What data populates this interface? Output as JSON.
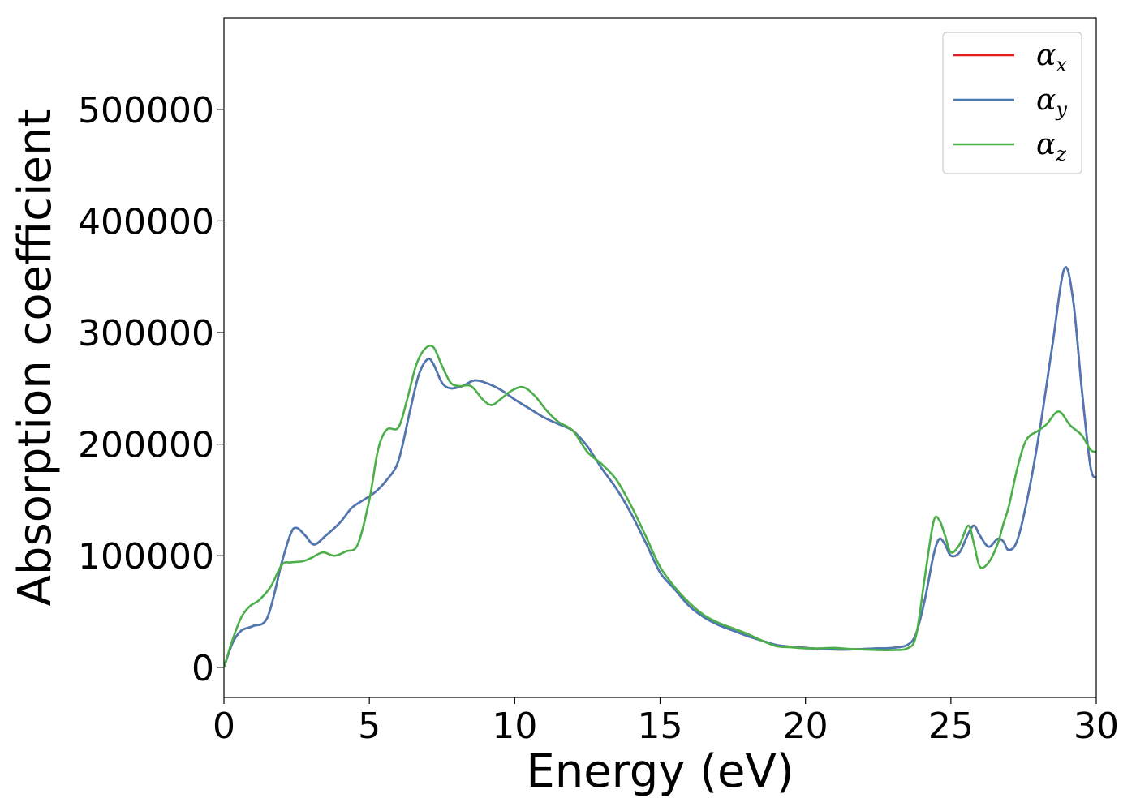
{
  "chart_data": {
    "type": "line",
    "title": "",
    "xlabel": "Energy (eV)",
    "ylabel": "Absorption coefficient",
    "xlim": [
      0,
      30
    ],
    "ylim": [
      -27000,
      582000
    ],
    "xticks": [
      0,
      5,
      10,
      15,
      20,
      25,
      30
    ],
    "yticks": [
      0,
      100000,
      200000,
      300000,
      400000,
      500000
    ],
    "grid": false,
    "legend_position": "top-right",
    "series": [
      {
        "name": "αx",
        "symbol": "α",
        "subscript": "x",
        "color": "#e41a1c",
        "x": [
          0,
          0.3,
          0.6,
          1.0,
          1.5,
          2.0,
          2.3,
          2.5,
          2.8,
          3.1,
          3.5,
          4.0,
          4.4,
          4.8,
          5.2,
          5.6,
          6.0,
          6.4,
          6.7,
          7.0,
          7.2,
          7.5,
          7.8,
          8.2,
          8.6,
          9.0,
          9.5,
          10.0,
          10.5,
          11.0,
          11.5,
          12.0,
          12.5,
          13.0,
          13.5,
          14.0,
          14.5,
          15.0,
          15.5,
          16.0,
          16.5,
          17.0,
          17.5,
          18.0,
          18.5,
          19.0,
          19.5,
          20.0,
          20.5,
          21.0,
          21.5,
          22.0,
          22.5,
          23.0,
          23.5,
          23.8,
          24.1,
          24.4,
          24.6,
          24.8,
          25.0,
          25.3,
          25.6,
          25.8,
          26.0,
          26.3,
          26.6,
          26.8,
          27.0,
          27.3,
          27.7,
          28.1,
          28.5,
          28.9,
          29.2,
          29.5,
          29.8,
          30.0
        ],
        "y": [
          0,
          22000,
          33000,
          37000,
          45000,
          95000,
          120000,
          125000,
          118000,
          110000,
          118000,
          130000,
          143000,
          150000,
          157000,
          168000,
          185000,
          230000,
          262000,
          276000,
          272000,
          255000,
          250000,
          252000,
          257000,
          255000,
          249000,
          240000,
          232000,
          224000,
          218000,
          212000,
          198000,
          178000,
          160000,
          138000,
          112000,
          85000,
          70000,
          55000,
          45000,
          38000,
          33000,
          28000,
          24000,
          20000,
          18500,
          17500,
          16500,
          16000,
          16000,
          16500,
          17000,
          17500,
          20000,
          30000,
          60000,
          100000,
          115000,
          110000,
          100000,
          103000,
          120000,
          127000,
          118000,
          108000,
          115000,
          113000,
          105000,
          115000,
          160000,
          220000,
          290000,
          357000,
          330000,
          250000,
          180000,
          170000
        ]
      },
      {
        "name": "αy",
        "symbol": "α",
        "subscript": "y",
        "color": "#4a7ab5",
        "x": [
          0,
          0.3,
          0.6,
          1.0,
          1.5,
          2.0,
          2.3,
          2.5,
          2.8,
          3.1,
          3.5,
          4.0,
          4.4,
          4.8,
          5.2,
          5.6,
          6.0,
          6.4,
          6.7,
          7.0,
          7.2,
          7.5,
          7.8,
          8.2,
          8.6,
          9.0,
          9.5,
          10.0,
          10.5,
          11.0,
          11.5,
          12.0,
          12.5,
          13.0,
          13.5,
          14.0,
          14.5,
          15.0,
          15.5,
          16.0,
          16.5,
          17.0,
          17.5,
          18.0,
          18.5,
          19.0,
          19.5,
          20.0,
          20.5,
          21.0,
          21.5,
          22.0,
          22.5,
          23.0,
          23.5,
          23.8,
          24.1,
          24.4,
          24.6,
          24.8,
          25.0,
          25.3,
          25.6,
          25.8,
          26.0,
          26.3,
          26.6,
          26.8,
          27.0,
          27.3,
          27.7,
          28.1,
          28.5,
          28.9,
          29.2,
          29.5,
          29.8,
          30.0
        ],
        "y": [
          0,
          22000,
          33000,
          37000,
          45000,
          95000,
          120000,
          125000,
          118000,
          110000,
          118000,
          130000,
          143000,
          150000,
          157000,
          168000,
          185000,
          230000,
          262000,
          276000,
          272000,
          255000,
          250000,
          252000,
          257000,
          255000,
          249000,
          240000,
          232000,
          224000,
          218000,
          212000,
          198000,
          178000,
          160000,
          138000,
          112000,
          85000,
          70000,
          55000,
          45000,
          38000,
          33000,
          28000,
          24000,
          20000,
          18500,
          17500,
          16500,
          16000,
          16000,
          16500,
          17000,
          17500,
          20000,
          30000,
          60000,
          100000,
          115000,
          110000,
          100000,
          103000,
          120000,
          127000,
          118000,
          108000,
          115000,
          113000,
          105000,
          115000,
          160000,
          220000,
          290000,
          357000,
          330000,
          250000,
          180000,
          170000
        ]
      },
      {
        "name": "αz",
        "symbol": "α",
        "subscript": "z",
        "color": "#4daf4a",
        "x": [
          0,
          0.3,
          0.6,
          0.9,
          1.2,
          1.6,
          2.0,
          2.3,
          2.7,
          3.0,
          3.4,
          3.8,
          4.2,
          4.6,
          5.0,
          5.3,
          5.6,
          6.0,
          6.3,
          6.6,
          6.9,
          7.2,
          7.5,
          7.8,
          8.1,
          8.5,
          8.9,
          9.2,
          9.5,
          9.9,
          10.3,
          10.7,
          11.1,
          11.5,
          12.0,
          12.5,
          13.0,
          13.5,
          14.0,
          14.5,
          15.0,
          15.5,
          16.0,
          16.5,
          17.0,
          17.5,
          18.0,
          18.5,
          19.0,
          19.5,
          20.0,
          20.5,
          21.0,
          21.5,
          22.0,
          22.5,
          23.0,
          23.5,
          23.8,
          24.1,
          24.4,
          24.6,
          24.8,
          25.0,
          25.3,
          25.6,
          25.8,
          26.0,
          26.3,
          26.6,
          26.8,
          27.0,
          27.3,
          27.6,
          28.0,
          28.3,
          28.6,
          28.8,
          29.1,
          29.5,
          29.8,
          30.0
        ],
        "y": [
          0,
          25000,
          45000,
          55000,
          60000,
          72000,
          92000,
          94000,
          95000,
          98000,
          103000,
          100000,
          104000,
          110000,
          150000,
          195000,
          213000,
          215000,
          240000,
          270000,
          285000,
          287000,
          270000,
          255000,
          252000,
          252000,
          240000,
          235000,
          240000,
          248000,
          251000,
          243000,
          230000,
          220000,
          212000,
          193000,
          182000,
          168000,
          145000,
          118000,
          90000,
          72000,
          58000,
          47000,
          40000,
          35000,
          30000,
          24000,
          19000,
          18000,
          17000,
          17000,
          17500,
          16500,
          16000,
          15500,
          15500,
          17000,
          28000,
          80000,
          130000,
          132000,
          118000,
          103000,
          110000,
          127000,
          110000,
          90000,
          94000,
          110000,
          128000,
          145000,
          180000,
          204000,
          212000,
          218000,
          228000,
          228000,
          217000,
          208000,
          195000,
          193000
        ]
      }
    ]
  }
}
